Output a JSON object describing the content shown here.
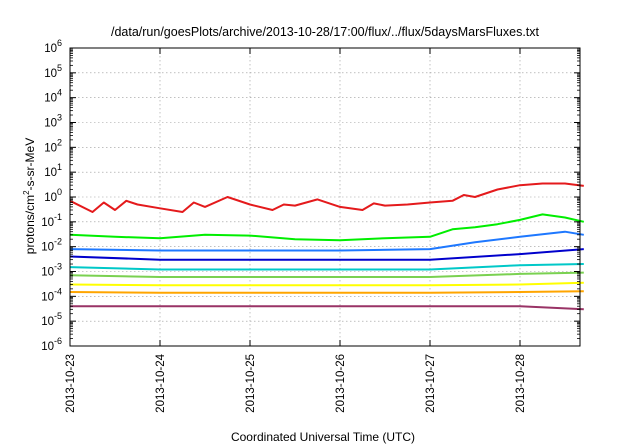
{
  "chart_data": {
    "type": "line",
    "title": "/data/run/goesPlots/archive/2013-10-28/17:00/flux/../flux/5daysMarsFluxes.txt",
    "xlabel": "Coordinated Universal Time (UTC)",
    "ylabel": "protons/cm2-s-sr-MeV",
    "ylabel_parts": {
      "main": "protons/cm",
      "sup": "2",
      "rest": "-s-sr-MeV"
    },
    "yscale": "log",
    "ylim": [
      1e-06,
      1000000.0
    ],
    "ytick_exponents": [
      -6,
      -5,
      -4,
      -3,
      -2,
      -1,
      0,
      1,
      2,
      3,
      4,
      5,
      6
    ],
    "ytick_base": "10",
    "xlim": [
      "2013-10-23",
      "2013-10-28 17:00"
    ],
    "xtick_labels": [
      "2013-10-23",
      "2013-10-24",
      "2013-10-25",
      "2013-10-26",
      "2013-10-27",
      "2013-10-28"
    ],
    "grid": true,
    "series": [
      {
        "color": "#e41a1c",
        "x": [
          "10-23 00:00",
          "10-23 06:00",
          "10-23 09:00",
          "10-23 12:00",
          "10-23 15:00",
          "10-23 18:00",
          "10-24 00:00",
          "10-24 06:00",
          "10-24 09:00",
          "10-24 12:00",
          "10-24 18:00",
          "10-25 00:00",
          "10-25 06:00",
          "10-25 09:00",
          "10-25 12:00",
          "10-25 18:00",
          "10-26 00:00",
          "10-26 06:00",
          "10-26 09:00",
          "10-26 12:00",
          "10-26 18:00",
          "10-27 00:00",
          "10-27 06:00",
          "10-27 09:00",
          "10-27 12:00",
          "10-27 18:00",
          "10-28 00:00",
          "10-28 06:00",
          "10-28 12:00",
          "10-28 17:00"
        ],
        "values": [
          0.7,
          0.25,
          0.6,
          0.3,
          0.7,
          0.5,
          0.35,
          0.25,
          0.6,
          0.4,
          1.0,
          0.5,
          0.3,
          0.5,
          0.45,
          0.8,
          0.4,
          0.3,
          0.55,
          0.45,
          0.5,
          0.6,
          0.7,
          1.2,
          1.0,
          2.0,
          3.0,
          3.5,
          3.5,
          2.8
        ]
      },
      {
        "color": "#00ee00",
        "x": [
          "10-23 00:00",
          "10-23 12:00",
          "10-24 00:00",
          "10-24 12:00",
          "10-25 00:00",
          "10-25 12:00",
          "10-26 00:00",
          "10-26 12:00",
          "10-27 00:00",
          "10-27 06:00",
          "10-27 12:00",
          "10-27 18:00",
          "10-28 00:00",
          "10-28 06:00",
          "10-28 12:00",
          "10-28 17:00"
        ],
        "values": [
          0.03,
          0.025,
          0.022,
          0.03,
          0.028,
          0.02,
          0.018,
          0.022,
          0.025,
          0.05,
          0.06,
          0.08,
          0.12,
          0.2,
          0.15,
          0.1
        ]
      },
      {
        "color": "#1e78ff",
        "x": [
          "10-23 00:00",
          "10-24 00:00",
          "10-25 00:00",
          "10-26 00:00",
          "10-27 00:00",
          "10-27 12:00",
          "10-28 00:00",
          "10-28 12:00",
          "10-28 17:00"
        ],
        "values": [
          0.008,
          0.007,
          0.007,
          0.007,
          0.008,
          0.015,
          0.025,
          0.04,
          0.03
        ]
      },
      {
        "color": "#0000cc",
        "x": [
          "10-23 00:00",
          "10-24 00:00",
          "10-25 00:00",
          "10-26 00:00",
          "10-27 00:00",
          "10-28 00:00",
          "10-28 17:00"
        ],
        "values": [
          0.004,
          0.003,
          0.003,
          0.003,
          0.003,
          0.005,
          0.008
        ]
      },
      {
        "color": "#00c8c8",
        "x": [
          "10-23 00:00",
          "10-24 00:00",
          "10-25 00:00",
          "10-26 00:00",
          "10-27 00:00",
          "10-28 00:00",
          "10-28 17:00"
        ],
        "values": [
          0.0015,
          0.0012,
          0.0012,
          0.0012,
          0.0012,
          0.0018,
          0.002
        ]
      },
      {
        "color": "#7ad151",
        "x": [
          "10-23 00:00",
          "10-24 00:00",
          "10-25 00:00",
          "10-26 00:00",
          "10-27 00:00",
          "10-28 00:00",
          "10-28 17:00"
        ],
        "values": [
          0.0007,
          0.0006,
          0.0006,
          0.0006,
          0.0006,
          0.0008,
          0.0009
        ]
      },
      {
        "color": "#ffff00",
        "x": [
          "10-23 00:00",
          "10-24 00:00",
          "10-25 00:00",
          "10-26 00:00",
          "10-27 00:00",
          "10-28 00:00",
          "10-28 17:00"
        ],
        "values": [
          0.0003,
          0.00028,
          0.00028,
          0.00028,
          0.00028,
          0.0003,
          0.00035
        ]
      },
      {
        "color": "#ffa500",
        "x": [
          "10-23 00:00",
          "10-24 00:00",
          "10-25 00:00",
          "10-26 00:00",
          "10-27 00:00",
          "10-28 00:00",
          "10-28 17:00"
        ],
        "values": [
          0.00015,
          0.00014,
          0.00014,
          0.00014,
          0.00014,
          0.00015,
          0.00016
        ]
      },
      {
        "color": "#993366",
        "x": [
          "10-23 00:00",
          "10-24 00:00",
          "10-25 00:00",
          "10-26 00:00",
          "10-27 00:00",
          "10-28 00:00",
          "10-28 17:00"
        ],
        "values": [
          4e-05,
          4e-05,
          4e-05,
          4e-05,
          4e-05,
          4e-05,
          3e-05
        ]
      }
    ]
  }
}
